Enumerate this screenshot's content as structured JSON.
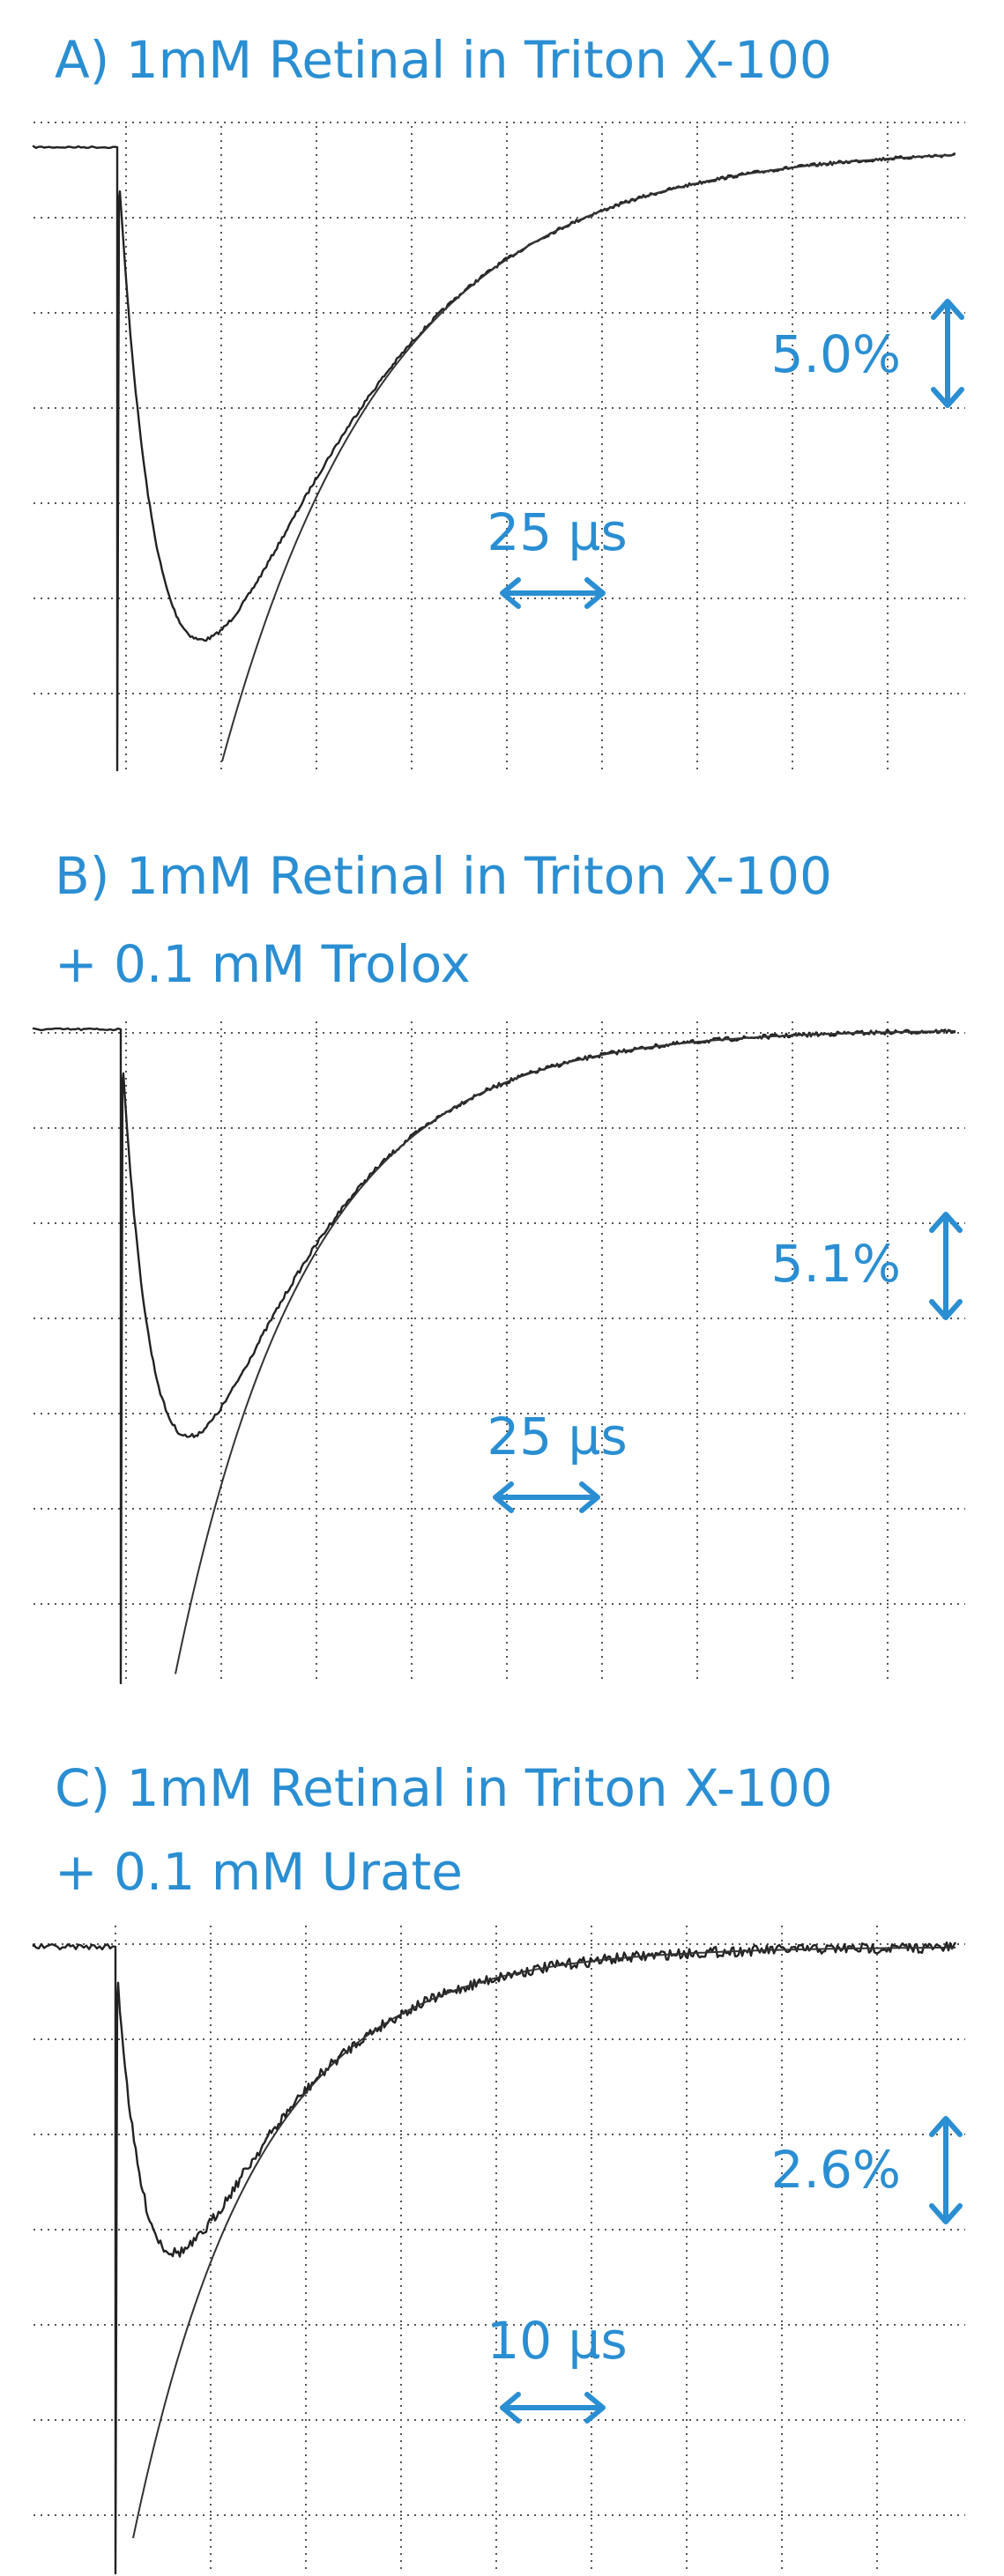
{
  "panels": [
    {
      "title_lines": [
        "A) 1mM Retinal in Triton X-100"
      ],
      "y_scale": "5.0%",
      "x_scale": "25 µs"
    },
    {
      "title_lines": [
        "B) 1mM Retinal in  Triton X-100",
        "+ 0.1 mM Trolox"
      ],
      "y_scale": "5.1%",
      "x_scale": "25 µs"
    },
    {
      "title_lines": [
        "C) 1mM Retinal in Triton X-100",
        "+ 0.1 mM Urate"
      ],
      "y_scale": "2.6%",
      "x_scale": "10 µs"
    }
  ]
}
